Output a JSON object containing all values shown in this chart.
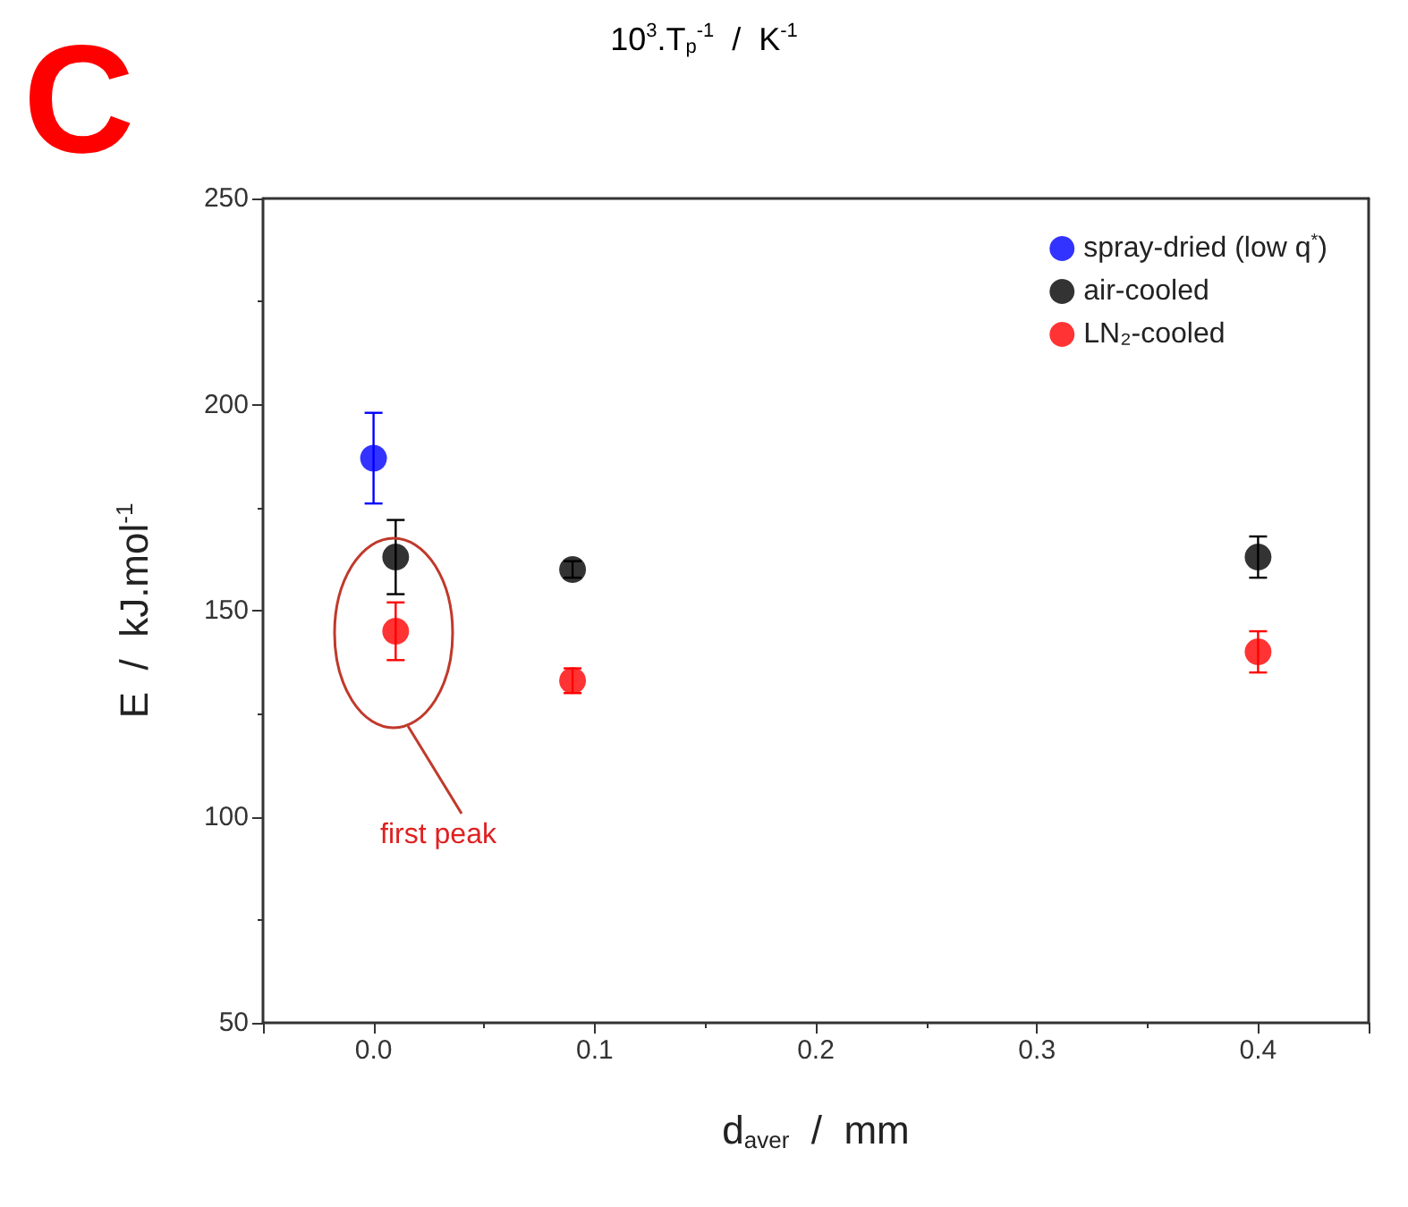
{
  "chart_data": {
    "type": "scatter",
    "title": "C",
    "annotations": [
      "10$^{3}$.T$_{p}$$^{-1}$  /  K$^{-1}$",
      "first peak"
    ],
    "xlabel": "d$_{aver}$  /  mm",
    "ylabel": "E  /  kJ.mol$^{-1}$",
    "xlim": [
      -0.05,
      0.45
    ],
    "xticks": [
      {
        "value": -0.05,
        "label": null
      },
      "0.0",
      0.1,
      0.2,
      0.3,
      0.4,
      {
        "value": 0.45,
        "label": null
      }
    ],
    "ylim": [
      50,
      250
    ],
    "yticks": [
      50,
      100,
      150,
      200,
      250
    ],
    "series": [
      {
        "name": "spray-dried (low q$^{*}$)",
        "color": "#0000ff",
        "x": [
          0
        ],
        "values": [
          187
        ],
        "errors": [
          11
        ]
      },
      {
        "name": "air-cooled",
        "color": "#000000",
        "x": [
          0.01,
          0.09,
          0.4
        ],
        "values": [
          163,
          160,
          163
        ],
        "errors": [
          9,
          2,
          5
        ]
      },
      {
        "name": "LN₂-cooled",
        "color": "#ff0000",
        "x": [
          0.01,
          0.09,
          0.4
        ],
        "values": [
          145,
          133,
          140
        ],
        "errors": [
          7,
          3,
          5
        ]
      }
    ],
    "marker": "circle",
    "legend": "top right",
    "grid": false
  }
}
